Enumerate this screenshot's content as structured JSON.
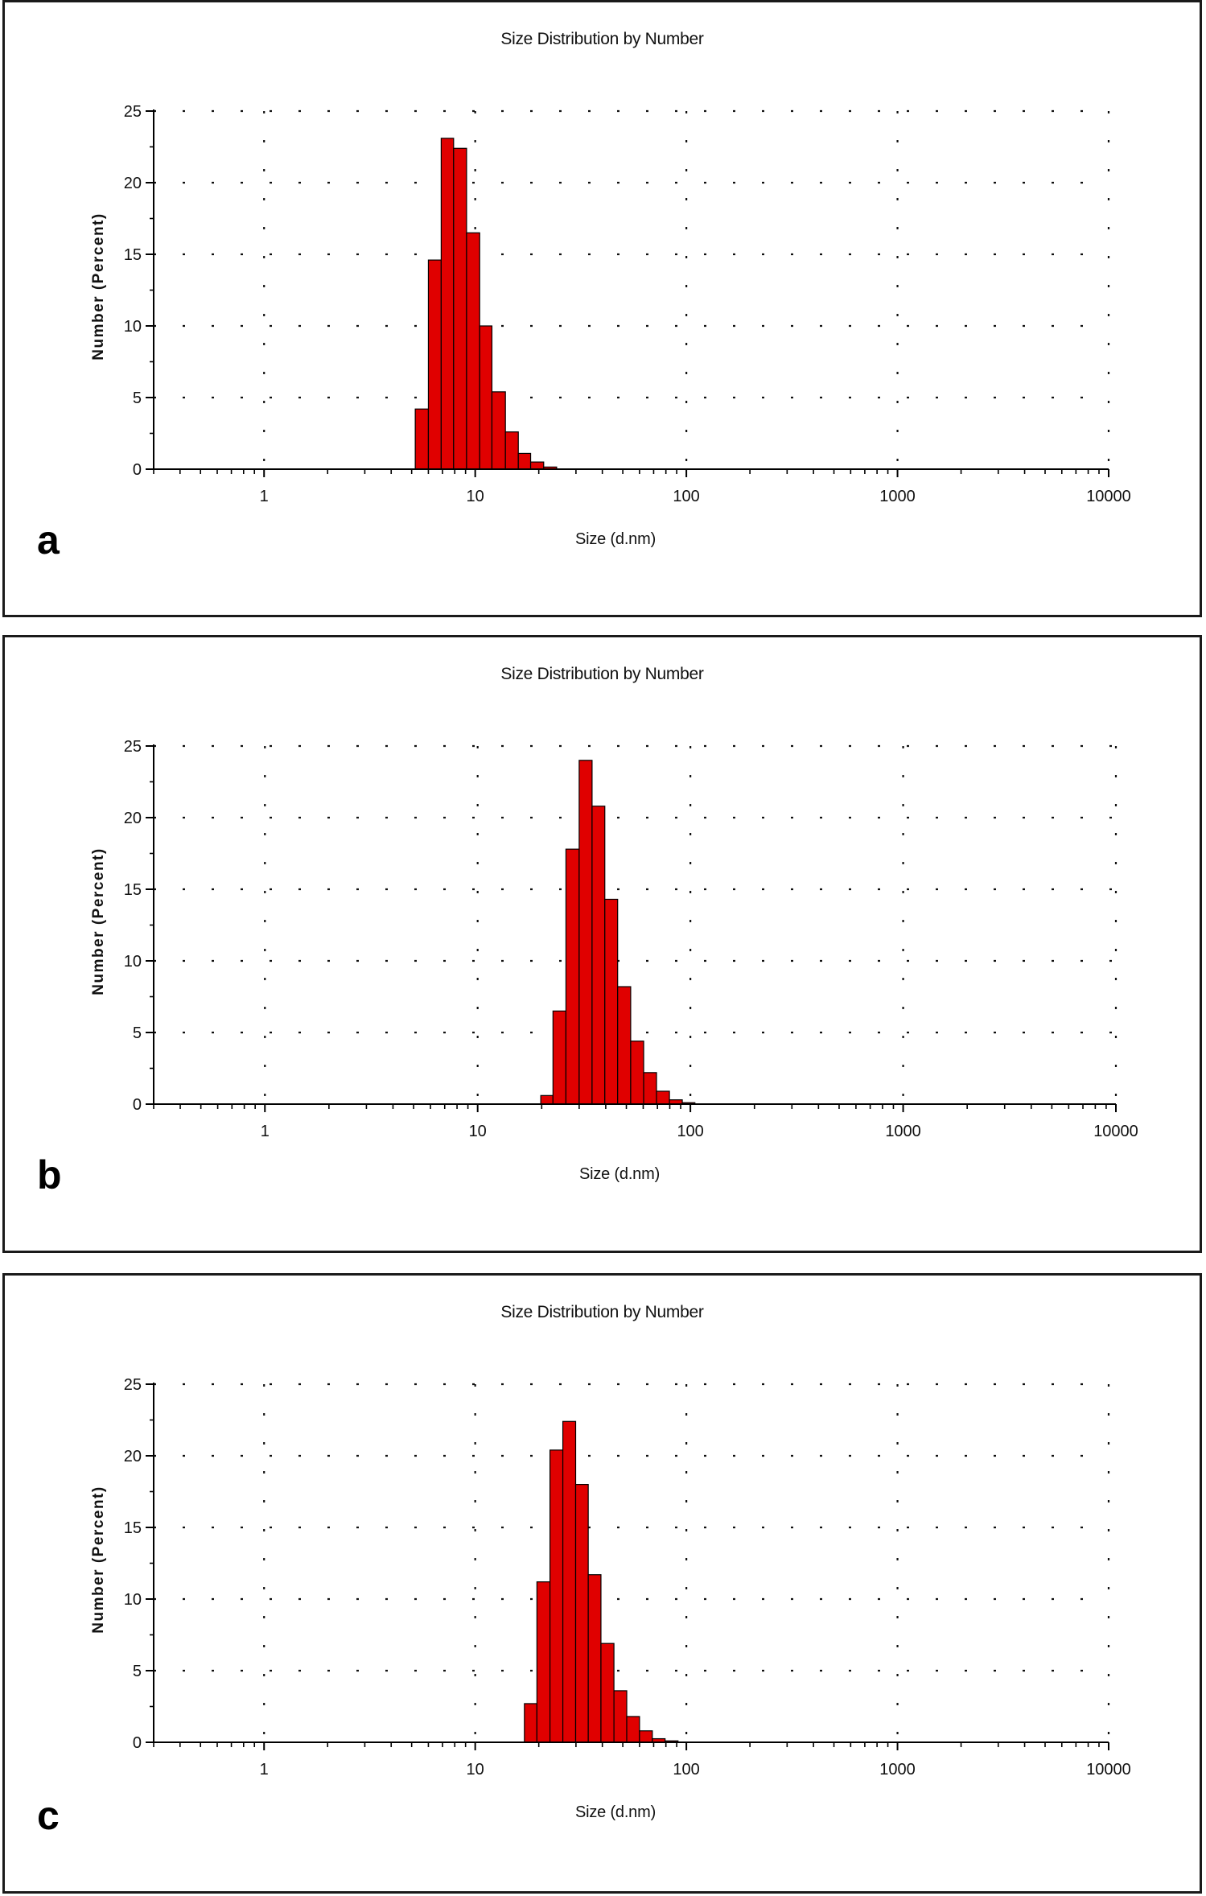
{
  "chart_data": [
    {
      "type": "bar",
      "panel_label": "a",
      "title": "Size Distribution by Number",
      "xlabel": "Size (d.nm)",
      "ylabel": "Number (Percent)",
      "xscale": "log",
      "xlim": [
        0.3,
        10000
      ],
      "ylim": [
        0,
        25
      ],
      "xticks": [
        "1",
        "10",
        "100",
        "1000",
        "10000"
      ],
      "yticks": [
        "0",
        "5",
        "10",
        "15",
        "20",
        "25"
      ],
      "grid": true,
      "bar_color": "#e00000",
      "bins": [
        {
          "from": 5.2,
          "to": 6.0,
          "value": 4.2
        },
        {
          "from": 6.0,
          "to": 6.9,
          "value": 14.6
        },
        {
          "from": 6.9,
          "to": 7.9,
          "value": 23.1
        },
        {
          "from": 7.9,
          "to": 9.1,
          "value": 22.4
        },
        {
          "from": 9.1,
          "to": 10.5,
          "value": 16.5
        },
        {
          "from": 10.5,
          "to": 12.0,
          "value": 10.0
        },
        {
          "from": 12.0,
          "to": 13.9,
          "value": 5.4
        },
        {
          "from": 13.9,
          "to": 16.0,
          "value": 2.6
        },
        {
          "from": 16.0,
          "to": 18.3,
          "value": 1.1
        },
        {
          "from": 18.3,
          "to": 21.1,
          "value": 0.5
        },
        {
          "from": 21.1,
          "to": 24.3,
          "value": 0.15
        }
      ]
    },
    {
      "type": "bar",
      "panel_label": "b",
      "title": "Size Distribution by Number",
      "xlabel": "Size (d.nm)",
      "ylabel": "Number (Percent)",
      "xscale": "log",
      "xlim": [
        0.3,
        10000
      ],
      "ylim": [
        0,
        25
      ],
      "xticks": [
        "1",
        "10",
        "100",
        "1000",
        "10000"
      ],
      "yticks": [
        "0",
        "5",
        "10",
        "15",
        "20",
        "25"
      ],
      "grid": true,
      "bar_color": "#e00000",
      "bins": [
        {
          "from": 19.8,
          "to": 22.6,
          "value": 0.6
        },
        {
          "from": 22.6,
          "to": 26.0,
          "value": 6.5
        },
        {
          "from": 26.0,
          "to": 30.0,
          "value": 17.8
        },
        {
          "from": 30.0,
          "to": 34.5,
          "value": 24.0
        },
        {
          "from": 34.5,
          "to": 39.6,
          "value": 20.8
        },
        {
          "from": 39.6,
          "to": 45.5,
          "value": 14.3
        },
        {
          "from": 45.5,
          "to": 52.4,
          "value": 8.2
        },
        {
          "from": 52.4,
          "to": 60.3,
          "value": 4.4
        },
        {
          "from": 60.3,
          "to": 69.3,
          "value": 2.2
        },
        {
          "from": 69.3,
          "to": 79.7,
          "value": 0.9
        },
        {
          "from": 79.7,
          "to": 91.6,
          "value": 0.3
        },
        {
          "from": 91.6,
          "to": 105.0,
          "value": 0.1
        }
      ]
    },
    {
      "type": "bar",
      "panel_label": "c",
      "title": "Size Distribution by Number",
      "xlabel": "Size (d.nm)",
      "ylabel": "Number (Percent)",
      "xscale": "log",
      "xlim": [
        0.3,
        10000
      ],
      "ylim": [
        0,
        25
      ],
      "xticks": [
        "1",
        "10",
        "100",
        "1000",
        "10000"
      ],
      "yticks": [
        "0",
        "5",
        "10",
        "15",
        "20",
        "25"
      ],
      "grid": true,
      "bar_color": "#e00000",
      "bins": [
        {
          "from": 17.1,
          "to": 19.6,
          "value": 2.7
        },
        {
          "from": 19.6,
          "to": 22.6,
          "value": 11.2
        },
        {
          "from": 22.6,
          "to": 26.0,
          "value": 20.4
        },
        {
          "from": 26.0,
          "to": 29.9,
          "value": 22.4
        },
        {
          "from": 29.9,
          "to": 34.3,
          "value": 18.0
        },
        {
          "from": 34.3,
          "to": 39.4,
          "value": 11.7
        },
        {
          "from": 39.4,
          "to": 45.4,
          "value": 6.9
        },
        {
          "from": 45.4,
          "to": 52.2,
          "value": 3.6
        },
        {
          "from": 52.2,
          "to": 60.0,
          "value": 1.8
        },
        {
          "from": 60.0,
          "to": 69.0,
          "value": 0.8
        },
        {
          "from": 69.0,
          "to": 79.3,
          "value": 0.25
        },
        {
          "from": 79.3,
          "to": 91.3,
          "value": 0.1
        }
      ]
    }
  ]
}
